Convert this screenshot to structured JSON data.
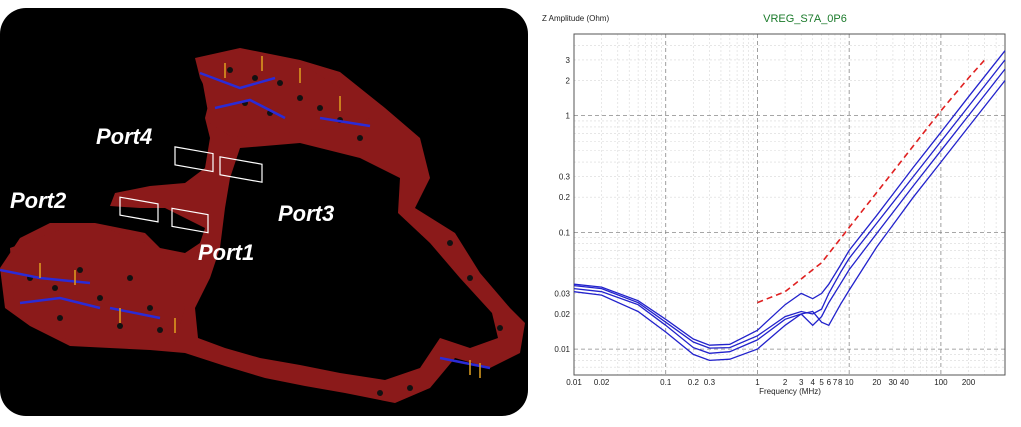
{
  "board": {
    "ports": [
      {
        "name": "Port4"
      },
      {
        "name": "Port2"
      },
      {
        "name": "Port3"
      },
      {
        "name": "Port1"
      }
    ],
    "colors": {
      "background": "#000000",
      "plane": "#8b1a1a",
      "trace": "#2b2bd6",
      "component": "#ffffff"
    }
  },
  "chart_data": {
    "type": "line",
    "title": "VREG_S7A_0P6",
    "xlabel": "Frequency (MHz)",
    "ylabel": "Z Amplitude (Ohm)",
    "xscale": "log",
    "yscale": "log",
    "xlim": [
      0.01,
      500
    ],
    "ylim": [
      0.006,
      5
    ],
    "grid": true,
    "xticks": [
      "0.01",
      "0.02",
      "0.1",
      "0.2",
      "0.3",
      "1",
      "2",
      "3",
      "4",
      "5",
      "6",
      "7",
      "8",
      "10",
      "20",
      "30",
      "40",
      "100",
      "200"
    ],
    "yticks": [
      "0.01",
      "0.02",
      "0.03",
      "0.1",
      "0.2",
      "0.3",
      "1",
      "2",
      "3"
    ],
    "series": [
      {
        "color": "#2222cc",
        "style": "solid",
        "x": [
          0.01,
          0.02,
          0.05,
          0.1,
          0.2,
          0.3,
          0.5,
          1,
          2,
          3,
          4,
          5,
          6,
          8,
          10,
          20,
          50,
          100,
          200,
          500
        ],
        "y": [
          0.035,
          0.033,
          0.025,
          0.017,
          0.0115,
          0.0102,
          0.0103,
          0.013,
          0.019,
          0.021,
          0.02,
          0.022,
          0.03,
          0.045,
          0.06,
          0.12,
          0.3,
          0.6,
          1.2,
          3.0
        ]
      },
      {
        "color": "#2222cc",
        "style": "solid",
        "x": [
          0.01,
          0.02,
          0.05,
          0.1,
          0.2,
          0.3,
          0.5,
          1,
          2,
          3,
          4,
          5,
          6,
          8,
          10,
          20,
          50,
          100,
          200,
          500
        ],
        "y": [
          0.033,
          0.031,
          0.024,
          0.016,
          0.0103,
          0.0092,
          0.0095,
          0.012,
          0.018,
          0.02,
          0.016,
          0.019,
          0.025,
          0.036,
          0.048,
          0.098,
          0.25,
          0.5,
          1.0,
          2.5
        ]
      },
      {
        "color": "#2222cc",
        "style": "solid",
        "x": [
          0.01,
          0.02,
          0.05,
          0.1,
          0.2,
          0.3,
          0.5,
          1,
          2,
          3,
          4,
          5,
          6,
          8,
          10,
          20,
          50,
          100,
          200,
          500
        ],
        "y": [
          0.031,
          0.029,
          0.021,
          0.014,
          0.009,
          0.008,
          0.0082,
          0.01,
          0.016,
          0.02,
          0.021,
          0.017,
          0.016,
          0.024,
          0.032,
          0.075,
          0.2,
          0.4,
          0.8,
          2.0
        ]
      },
      {
        "color": "#2222cc",
        "style": "solid",
        "x": [
          0.01,
          0.02,
          0.05,
          0.1,
          0.2,
          0.3,
          0.5,
          1,
          2,
          3,
          4,
          5,
          6,
          8,
          10,
          20,
          50,
          100,
          200,
          500
        ],
        "y": [
          0.036,
          0.034,
          0.026,
          0.018,
          0.0122,
          0.0108,
          0.011,
          0.0145,
          0.024,
          0.03,
          0.027,
          0.03,
          0.036,
          0.052,
          0.07,
          0.14,
          0.36,
          0.72,
          1.45,
          3.6
        ]
      },
      {
        "color": "#e02020",
        "style": "dashed",
        "x": [
          1,
          2,
          5,
          10,
          20,
          50,
          100,
          200,
          300
        ],
        "y": [
          0.025,
          0.031,
          0.055,
          0.11,
          0.22,
          0.55,
          1.1,
          2.1,
          3.0
        ]
      }
    ]
  }
}
